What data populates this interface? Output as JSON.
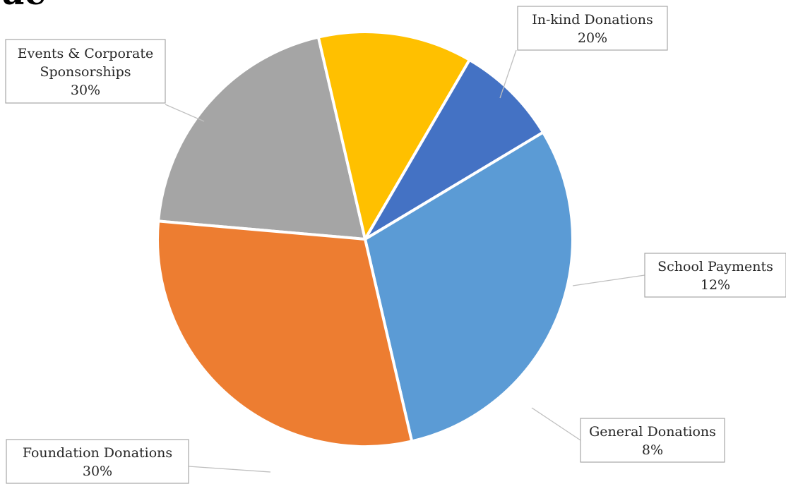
{
  "heading_fragment": "ue",
  "chart_data": {
    "type": "pie",
    "title": "",
    "slices": [
      {
        "label_lines": [
          "In-kind Donations"
        ],
        "percent": 20,
        "value_label": "20%",
        "color": "#a5a5a5"
      },
      {
        "label_lines": [
          "School Payments"
        ],
        "percent": 12,
        "value_label": "12%",
        "color": "#ffc000"
      },
      {
        "label_lines": [
          "General Donations"
        ],
        "percent": 8,
        "value_label": "8%",
        "color": "#4472c4"
      },
      {
        "label_lines": [
          "Foundation Donations"
        ],
        "percent": 30,
        "value_label": "30%",
        "color": "#5b9bd5"
      },
      {
        "label_lines": [
          "Events & Corporate",
          "Sponsorships"
        ],
        "percent": 30,
        "value_label": "30%",
        "color": "#ed7d31"
      }
    ],
    "data_labels": "outside-with-leader-lines",
    "legend": "none"
  }
}
